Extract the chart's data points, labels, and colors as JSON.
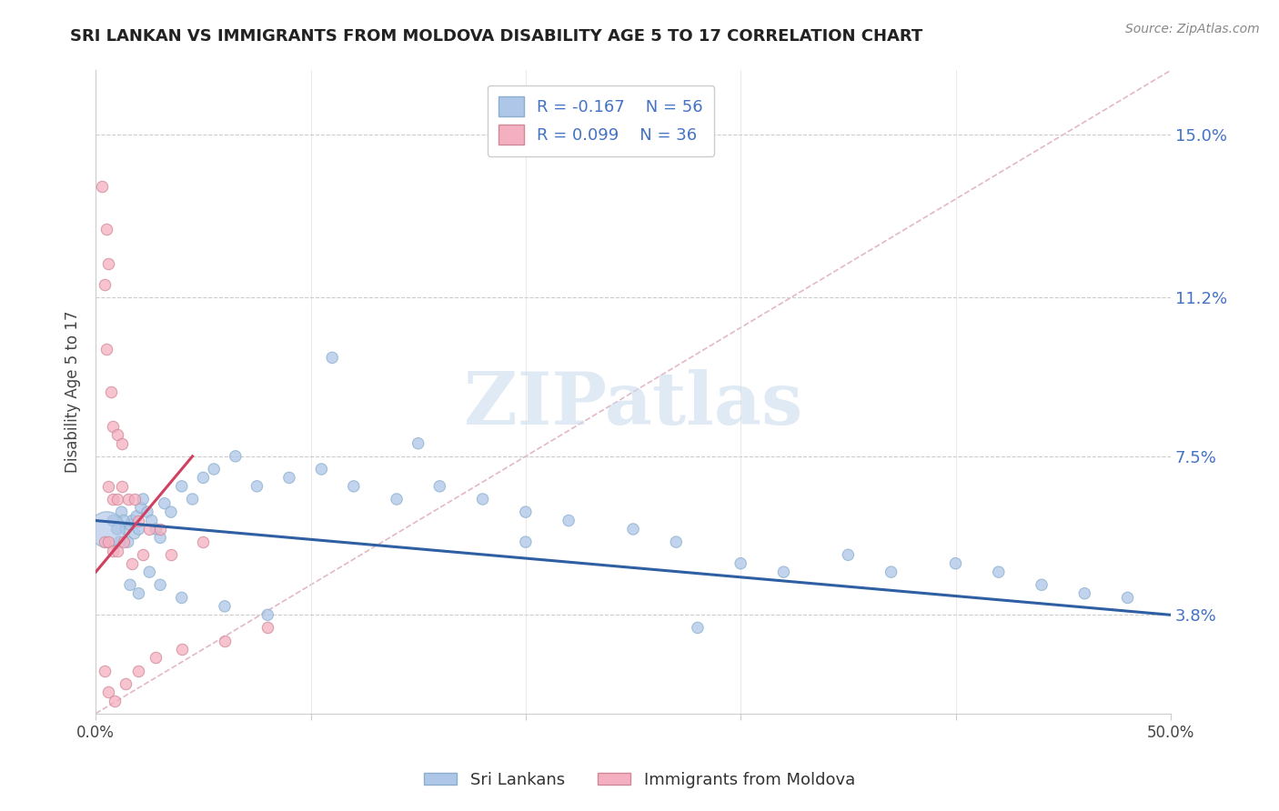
{
  "title": "SRI LANKAN VS IMMIGRANTS FROM MOLDOVA DISABILITY AGE 5 TO 17 CORRELATION CHART",
  "source": "Source: ZipAtlas.com",
  "ylabel_values": [
    3.8,
    7.5,
    11.2,
    15.0
  ],
  "xmin": 0.0,
  "xmax": 50.0,
  "ymin": 1.5,
  "ymax": 16.5,
  "legend_blue_r": "R = -0.167",
  "legend_blue_n": "N = 56",
  "legend_pink_r": "R = 0.099",
  "legend_pink_n": "N = 36",
  "legend_blue_label": "Sri Lankans",
  "legend_pink_label": "Immigrants from Moldova",
  "blue_color": "#aec6e8",
  "pink_color": "#f4afc0",
  "blue_line_color": "#2e5fa3",
  "pink_line_color": "#d04060",
  "diag_line_color": "#e0b0c0",
  "watermark": "ZIPatlas",
  "watermark_color": "#ccdcee",
  "ylabel": "Disability Age 5 to 17",
  "blue_scatter_x": [
    0.8,
    1.0,
    1.2,
    1.4,
    1.5,
    1.6,
    1.7,
    1.8,
    1.9,
    2.0,
    2.1,
    2.2,
    2.4,
    2.6,
    2.8,
    3.0,
    3.2,
    3.5,
    4.0,
    4.5,
    5.0,
    5.5,
    6.5,
    7.5,
    9.0,
    10.5,
    12.0,
    14.0,
    16.0,
    18.0,
    20.0,
    22.0,
    25.0,
    27.0,
    30.0,
    32.0,
    35.0,
    37.0,
    40.0,
    42.0,
    44.0,
    46.0,
    48.0,
    1.1,
    1.3,
    1.6,
    2.0,
    2.5,
    3.0,
    4.0,
    6.0,
    8.0,
    11.0,
    15.0,
    20.0,
    28.0
  ],
  "blue_scatter_y": [
    6.0,
    5.8,
    6.2,
    5.8,
    5.5,
    5.9,
    6.0,
    5.7,
    6.1,
    5.8,
    6.3,
    6.5,
    6.2,
    6.0,
    5.8,
    5.6,
    6.4,
    6.2,
    6.8,
    6.5,
    7.0,
    7.2,
    7.5,
    6.8,
    7.0,
    7.2,
    6.8,
    6.5,
    6.8,
    6.5,
    6.2,
    6.0,
    5.8,
    5.5,
    5.0,
    4.8,
    5.2,
    4.8,
    5.0,
    4.8,
    4.5,
    4.3,
    4.2,
    5.5,
    6.0,
    4.5,
    4.3,
    4.8,
    4.5,
    4.2,
    4.0,
    3.8,
    9.8,
    7.8,
    5.5,
    3.5
  ],
  "blue_scatter_sizes": [
    80,
    80,
    80,
    80,
    80,
    80,
    80,
    80,
    80,
    80,
    80,
    80,
    80,
    80,
    80,
    80,
    80,
    80,
    80,
    80,
    80,
    80,
    80,
    80,
    80,
    80,
    80,
    80,
    80,
    80,
    80,
    80,
    80,
    80,
    80,
    80,
    80,
    80,
    80,
    80,
    80,
    80,
    80,
    80,
    80,
    80,
    80,
    80,
    80,
    80,
    80,
    80,
    80,
    80,
    80,
    80
  ],
  "blue_large_x": [
    0.5
  ],
  "blue_large_y": [
    5.8
  ],
  "blue_large_size": [
    800
  ],
  "pink_scatter_x": [
    0.3,
    0.5,
    0.6,
    0.4,
    0.5,
    0.7,
    0.8,
    1.0,
    1.2,
    0.6,
    0.8,
    1.0,
    1.2,
    1.5,
    1.8,
    2.0,
    2.5,
    3.0,
    0.4,
    0.6,
    0.8,
    1.0,
    1.3,
    1.7,
    2.2,
    3.5,
    5.0,
    0.4,
    0.6,
    0.9,
    1.4,
    2.0,
    2.8,
    4.0,
    6.0,
    8.0
  ],
  "pink_scatter_y": [
    13.8,
    12.8,
    12.0,
    11.5,
    10.0,
    9.0,
    8.2,
    8.0,
    7.8,
    6.8,
    6.5,
    6.5,
    6.8,
    6.5,
    6.5,
    6.0,
    5.8,
    5.8,
    5.5,
    5.5,
    5.3,
    5.3,
    5.5,
    5.0,
    5.2,
    5.2,
    5.5,
    2.5,
    2.0,
    1.8,
    2.2,
    2.5,
    2.8,
    3.0,
    3.2,
    3.5
  ],
  "blue_trendline_x": [
    0.0,
    50.0
  ],
  "blue_trendline_y": [
    6.0,
    3.8
  ],
  "pink_trendline_x": [
    0.0,
    4.5
  ],
  "pink_trendline_y": [
    4.8,
    7.5
  ],
  "diag_line_x": [
    0.0,
    50.0
  ],
  "diag_line_y": [
    1.5,
    16.5
  ]
}
